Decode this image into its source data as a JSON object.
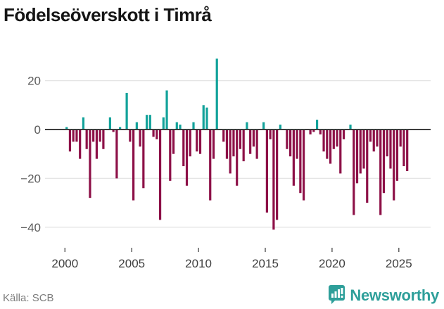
{
  "title": "Födelseöverskott i Timrå",
  "footer": {
    "source": "Källa: SCB",
    "brand": "Newsworthy"
  },
  "chart_data": {
    "type": "bar",
    "title": "Födelseöverskott i Timrå",
    "frequency": "quarterly",
    "start_period": "2000-Q1",
    "end_period": "2025-Q3",
    "x_tick_labels": [
      "2000",
      "2005",
      "2010",
      "2015",
      "2020",
      "2025"
    ],
    "y_tick_labels": [
      "20",
      "0",
      "−20",
      "−40"
    ],
    "y_ticks": [
      20,
      0,
      -20,
      -40
    ],
    "ylim": [
      -43,
      31
    ],
    "grid": true,
    "legend": "none",
    "colors": {
      "positive": "#12a29a",
      "negative": "#8d1047",
      "zero_line": "#3d3d3d",
      "grid_line": "#e4e4e4",
      "tick_text": "#3f3f3f",
      "ytick_text": "#5a5a5a",
      "brand_teal": "#2e9f9a"
    },
    "values": [
      1,
      -9,
      -5,
      -5,
      -12,
      5,
      -8,
      -28,
      -5,
      -12,
      -5,
      -8,
      0,
      5,
      -1,
      -20,
      1,
      0,
      15,
      -5,
      -29,
      3,
      -7,
      -24,
      6,
      6,
      -3,
      -4,
      -37,
      5,
      16,
      -21,
      -10,
      3,
      2,
      -15,
      -23,
      -11,
      3,
      -9,
      -10,
      10,
      9,
      -29,
      -12,
      29,
      0,
      -5,
      -12,
      -18,
      -11,
      -23,
      -8,
      -13,
      3,
      -10,
      -7,
      -12,
      0,
      3,
      -34,
      -4,
      -41,
      -37,
      2,
      0,
      -8,
      -11,
      -23,
      -12,
      -26,
      -29,
      0,
      -2,
      -1,
      4,
      -2,
      -9,
      -12,
      -14,
      -8,
      -7,
      -18,
      -4,
      0,
      2,
      -35,
      -22,
      -18,
      -16,
      -30,
      -5,
      -9,
      -7,
      -35,
      -26,
      -11,
      -16,
      -29,
      -21,
      -7,
      -15,
      -17
    ]
  }
}
